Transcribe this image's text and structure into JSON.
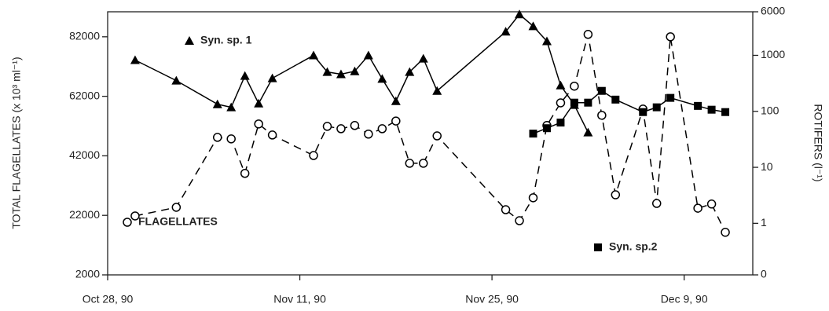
{
  "chart_data": {
    "type": "line",
    "ylabel": "TOTAL FLAGELLATES (x 10³ ml⁻¹)",
    "y2label": "ROTIFERS (l⁻¹)",
    "xlim": [
      "1990-10-28",
      "1990-12-14"
    ],
    "xticks": [
      {
        "value": "1990-10-28",
        "label": "Oct 28, 90"
      },
      {
        "value": "1990-11-11",
        "label": "Nov 11, 90"
      },
      {
        "value": "1990-11-25",
        "label": "Nov 25, 90"
      },
      {
        "value": "1990-12-09",
        "label": "Dec 9, 90"
      }
    ],
    "ylim": [
      2000,
      90400
    ],
    "yticks": [
      2000,
      22000,
      42000,
      62000,
      82000
    ],
    "y2log": true,
    "y2lim": [
      0.12,
      6000
    ],
    "y2ticks": [
      {
        "value": 0.12,
        "label": "0"
      },
      1,
      10,
      100,
      1000,
      6000
    ],
    "series": [
      {
        "name": "Syn. sp. 1",
        "color": "#000000",
        "marker": "triangle",
        "line_style": "solid",
        "axis": "y2",
        "x": [
          "1990-10-30",
          "1990-11-02",
          "1990-11-05",
          "1990-11-06",
          "1990-11-07",
          "1990-11-08",
          "1990-11-09",
          "1990-11-12",
          "1990-11-13",
          "1990-11-14",
          "1990-11-15",
          "1990-11-16",
          "1990-11-17",
          "1990-11-18",
          "1990-11-19",
          "1990-11-20",
          "1990-11-21",
          "1990-11-26",
          "1990-11-27",
          "1990-11-28",
          "1990-11-29",
          "1990-11-30",
          "1990-12-01",
          "1990-12-02"
        ],
        "values": [
          823,
          354,
          134,
          118,
          430,
          138,
          390,
          1000,
          505,
          460,
          520,
          1000,
          380,
          152,
          505,
          875,
          232,
          2650,
          5400,
          3320,
          1790,
          290,
          130,
          42
        ]
      },
      {
        "name": "FLAGELLATES",
        "color": "#000000",
        "marker": "circle",
        "line_style": "dashed",
        "axis": "y",
        "x": [
          "1990-10-30",
          "1990-11-02",
          "1990-11-05",
          "1990-11-06",
          "1990-11-07",
          "1990-11-08",
          "1990-11-09",
          "1990-11-12",
          "1990-11-13",
          "1990-11-14",
          "1990-11-15",
          "1990-11-16",
          "1990-11-17",
          "1990-11-18",
          "1990-11-19",
          "1990-11-20",
          "1990-11-21",
          "1990-11-26",
          "1990-11-27",
          "1990-11-28",
          "1990-11-29",
          "1990-11-30",
          "1990-12-01",
          "1990-12-02",
          "1990-12-03",
          "1990-12-04",
          "1990-12-06",
          "1990-12-07",
          "1990-12-08",
          "1990-12-10",
          "1990-12-11",
          "1990-12-12"
        ],
        "values": [
          21800,
          24700,
          48200,
          47700,
          36100,
          52700,
          49000,
          42100,
          51900,
          51100,
          52200,
          49300,
          51100,
          53700,
          39500,
          39500,
          48700,
          23900,
          20200,
          27900,
          52200,
          59800,
          65400,
          82800,
          55600,
          28900,
          57700,
          26000,
          82000,
          24400,
          25800,
          16300
        ]
      },
      {
        "name": "Syn. sp.2",
        "color": "#000000",
        "marker": "square",
        "line_style": "solid",
        "axis": "y2",
        "x": [
          "1990-11-28",
          "1990-11-29",
          "1990-11-30",
          "1990-12-01",
          "1990-12-02",
          "1990-12-03",
          "1990-12-04",
          "1990-12-06",
          "1990-12-07",
          "1990-12-08",
          "1990-12-10",
          "1990-12-11",
          "1990-12-12"
        ],
        "values": [
          40,
          50,
          63,
          143,
          143,
          232,
          162,
          97,
          118,
          174,
          125,
          107,
          97
        ]
      }
    ]
  }
}
